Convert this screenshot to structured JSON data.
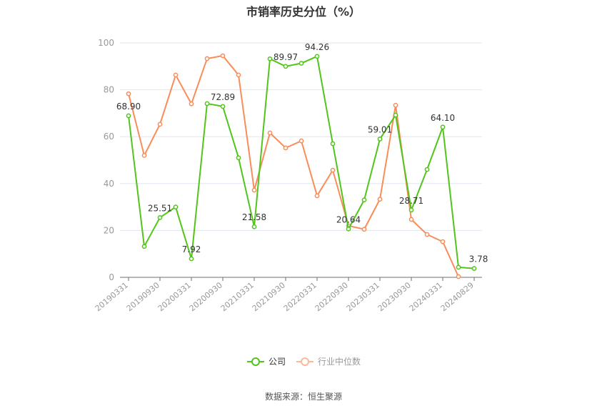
{
  "header": {
    "title": "市销率历史分位（%）"
  },
  "legend": {
    "items": [
      {
        "label": "公司",
        "color": "#52c41a"
      },
      {
        "label": "行业中位数",
        "color": "#fa8c5a"
      }
    ]
  },
  "footer": {
    "source": "数据来源：恒生聚源"
  },
  "chart_data": {
    "type": "line",
    "title": "市销率历史分位（%）",
    "xlabel": "",
    "ylabel": "",
    "ylim": [
      0,
      100
    ],
    "yticks": [
      0,
      20,
      40,
      60,
      80,
      100
    ],
    "grid": true,
    "legend_position": "bottom",
    "x": [
      "20190331",
      "20190630",
      "20190930",
      "20191231",
      "20200331",
      "20200630",
      "20200930",
      "20201231",
      "20210331",
      "20210630",
      "20210930",
      "20211231",
      "20220331",
      "20220630",
      "20220930",
      "20221231",
      "20230331",
      "20230630",
      "20230930",
      "20231231",
      "20240331",
      "20240630",
      "20240829"
    ],
    "xtick_labels": [
      "20190331",
      "20190930",
      "20200331",
      "20200930",
      "20210331",
      "20210930",
      "20220331",
      "20220930",
      "20230331",
      "20230930",
      "20240331",
      "20240829"
    ],
    "series": [
      {
        "name": "公司",
        "color": "#52c41a",
        "values": [
          68.9,
          13.2,
          25.51,
          30.0,
          7.92,
          74.1,
          72.89,
          51.0,
          21.58,
          93.2,
          89.97,
          91.3,
          94.26,
          57.0,
          20.64,
          33.0,
          59.01,
          69.2,
          28.71,
          46.0,
          64.1,
          4.3,
          3.78
        ]
      },
      {
        "name": "行业中位数",
        "color": "#fa8c5a",
        "values": [
          78.3,
          52.0,
          65.3,
          86.3,
          74.0,
          93.3,
          94.5,
          86.3,
          37.2,
          61.6,
          55.2,
          58.2,
          34.8,
          45.7,
          22.0,
          20.5,
          33.3,
          73.4,
          24.7,
          18.3,
          15.2,
          0.3,
          null
        ]
      }
    ],
    "annotations": [
      {
        "series": "公司",
        "x": "20190331",
        "text": "68.90"
      },
      {
        "series": "公司",
        "x": "20190930",
        "text": "25.51"
      },
      {
        "series": "公司",
        "x": "20200331",
        "text": "7.92"
      },
      {
        "series": "公司",
        "x": "20200930",
        "text": "72.89"
      },
      {
        "series": "公司",
        "x": "20210331",
        "text": "21.58"
      },
      {
        "series": "公司",
        "x": "20210930",
        "text": "89.97"
      },
      {
        "series": "公司",
        "x": "20220331",
        "text": "94.26"
      },
      {
        "series": "公司",
        "x": "20220930",
        "text": "20.64"
      },
      {
        "series": "公司",
        "x": "20230331",
        "text": "59.01"
      },
      {
        "series": "公司",
        "x": "20230930",
        "text": "28.71"
      },
      {
        "series": "公司",
        "x": "20240331",
        "text": "64.10"
      },
      {
        "series": "公司",
        "x": "20240829",
        "text": "3.78"
      }
    ]
  }
}
